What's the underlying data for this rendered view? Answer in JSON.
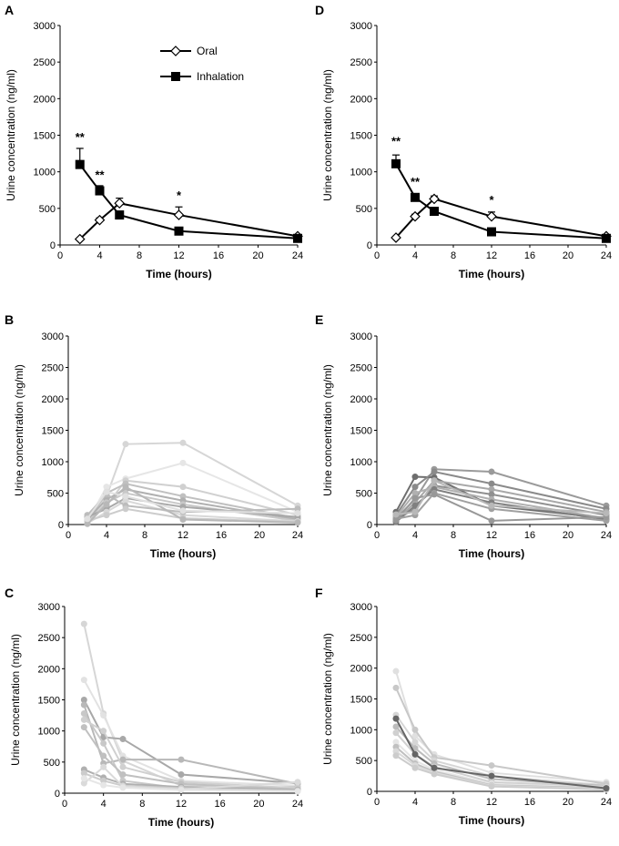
{
  "figure": {
    "panel_labels": [
      "A",
      "B",
      "C",
      "D",
      "E",
      "F"
    ]
  },
  "chart_data": [
    {
      "panel": "A",
      "type": "line",
      "xlabel": "Time (hours)",
      "ylabel": "Urine concentration (ng/ml)",
      "xlim": [
        0,
        24
      ],
      "ylim": [
        0,
        3000
      ],
      "xticks": [
        0,
        4,
        8,
        12,
        16,
        20,
        24
      ],
      "yticks": [
        0,
        500,
        1000,
        1500,
        2000,
        2500,
        3000
      ],
      "legend": [
        "Oral",
        "Inhalation"
      ],
      "series": [
        {
          "name": "Oral",
          "marker": "diamond-open",
          "x": [
            2,
            4,
            6,
            12,
            24
          ],
          "values": [
            80,
            340,
            570,
            410,
            120
          ],
          "error": [
            0,
            30,
            70,
            110,
            20
          ]
        },
        {
          "name": "Inhalation",
          "marker": "square-filled",
          "x": [
            2,
            4,
            6,
            12,
            24
          ],
          "values": [
            1100,
            740,
            410,
            190,
            90
          ],
          "error": [
            220,
            70,
            50,
            30,
            20
          ]
        }
      ],
      "annotations": [
        {
          "x": 2,
          "y": 1420,
          "text": "**"
        },
        {
          "x": 4,
          "y": 900,
          "text": "**"
        },
        {
          "x": 12,
          "y": 620,
          "text": "*"
        }
      ]
    },
    {
      "panel": "B",
      "type": "line",
      "xlabel": "Time (hours)",
      "ylabel": "Urine concentration (ng/ml)",
      "xlim": [
        0,
        24
      ],
      "ylim": [
        0,
        3000
      ],
      "xticks": [
        0,
        4,
        8,
        12,
        16,
        20,
        24
      ],
      "yticks": [
        0,
        500,
        1000,
        1500,
        2000,
        2500,
        3000
      ],
      "x": [
        2,
        4,
        6,
        12,
        24
      ],
      "series": [
        {
          "color": "#d6d6d6",
          "values": [
            60,
            450,
            1280,
            1300,
            300
          ]
        },
        {
          "color": "#e6e6e6",
          "values": [
            40,
            600,
            730,
            980,
            200
          ]
        },
        {
          "color": "#d0d0d0",
          "values": [
            100,
            300,
            700,
            600,
            150
          ]
        },
        {
          "color": "#c0c0c0",
          "values": [
            50,
            500,
            650,
            450,
            100
          ]
        },
        {
          "color": "#b0b0b0",
          "values": [
            80,
            400,
            560,
            380,
            80
          ]
        },
        {
          "color": "#c8c8c8",
          "values": [
            30,
            350,
            500,
            320,
            60
          ]
        },
        {
          "color": "#a8a8a8",
          "values": [
            120,
            250,
            420,
            280,
            120
          ]
        },
        {
          "color": "#d8d8d8",
          "values": [
            20,
            200,
            380,
            150,
            50
          ]
        },
        {
          "color": "#bcbcbc",
          "values": [
            150,
            480,
            300,
            200,
            250
          ]
        },
        {
          "color": "#cccccc",
          "values": [
            60,
            150,
            250,
            100,
            40
          ]
        },
        {
          "color": "#b8b8b8",
          "values": [
            10,
            320,
            600,
            80,
            30
          ]
        },
        {
          "color": "#e0e0e0",
          "values": [
            90,
            520,
            450,
            220,
            180
          ]
        }
      ]
    },
    {
      "panel": "C",
      "type": "line",
      "xlabel": "Time (hours)",
      "ylabel": "Urine concentration (ng/ml)",
      "xlim": [
        0,
        24
      ],
      "ylim": [
        0,
        3000
      ],
      "xticks": [
        0,
        4,
        8,
        12,
        16,
        20,
        24
      ],
      "yticks": [
        0,
        500,
        1000,
        1500,
        2000,
        2500,
        3000
      ],
      "x": [
        2,
        4,
        6,
        12,
        24
      ],
      "series": [
        {
          "color": "#d6d6d6",
          "values": [
            2720,
            1280,
            520,
            120,
            90
          ]
        },
        {
          "color": "#e2e2e2",
          "values": [
            1820,
            1250,
            600,
            200,
            120
          ]
        },
        {
          "color": "#a8a8a8",
          "values": [
            1500,
            900,
            870,
            300,
            160
          ]
        },
        {
          "color": "#b8b8b8",
          "values": [
            1420,
            480,
            540,
            540,
            150
          ]
        },
        {
          "color": "#c8c8c8",
          "values": [
            1280,
            800,
            200,
            80,
            100
          ]
        },
        {
          "color": "#d0d0d0",
          "values": [
            1180,
            1000,
            420,
            180,
            80
          ]
        },
        {
          "color": "#c0c0c0",
          "values": [
            1060,
            600,
            300,
            150,
            60
          ]
        },
        {
          "color": "#b0b0b0",
          "values": [
            380,
            250,
            150,
            100,
            50
          ]
        },
        {
          "color": "#cccccc",
          "values": [
            320,
            200,
            120,
            80,
            40
          ]
        },
        {
          "color": "#dadada",
          "values": [
            160,
            420,
            110,
            60,
            180
          ]
        },
        {
          "color": "#e6e6e6",
          "values": [
            240,
            130,
            90,
            50,
            30
          ]
        }
      ]
    },
    {
      "panel": "D",
      "type": "line",
      "xlabel": "Time (hours)",
      "ylabel": "Urine concentration (ng/ml)",
      "xlim": [
        0,
        24
      ],
      "ylim": [
        0,
        3000
      ],
      "xticks": [
        0,
        4,
        8,
        12,
        16,
        20,
        24
      ],
      "yticks": [
        0,
        500,
        1000,
        1500,
        2000,
        2500,
        3000
      ],
      "series": [
        {
          "name": "Oral",
          "marker": "diamond-open",
          "x": [
            2,
            4,
            6,
            12,
            24
          ],
          "values": [
            100,
            390,
            630,
            390,
            120
          ],
          "error": [
            0,
            30,
            40,
            60,
            20
          ]
        },
        {
          "name": "Inhalation",
          "marker": "square-filled",
          "x": [
            2,
            4,
            6,
            12,
            24
          ],
          "values": [
            1110,
            650,
            460,
            180,
            90
          ],
          "error": [
            120,
            50,
            30,
            20,
            10
          ]
        }
      ],
      "annotations": [
        {
          "x": 2,
          "y": 1360,
          "text": "**"
        },
        {
          "x": 4,
          "y": 810,
          "text": "**"
        },
        {
          "x": 12,
          "y": 560,
          "text": "*"
        }
      ]
    },
    {
      "panel": "E",
      "type": "line",
      "xlabel": "Time (hours)",
      "ylabel": "Urine concentration (ng/ml)",
      "xlim": [
        0,
        24
      ],
      "ylim": [
        0,
        3000
      ],
      "xticks": [
        0,
        4,
        8,
        12,
        16,
        20,
        24
      ],
      "yticks": [
        0,
        500,
        1000,
        1500,
        2000,
        2500,
        3000
      ],
      "x": [
        2,
        4,
        6,
        12,
        24
      ],
      "series": [
        {
          "color": "#9a9a9a",
          "values": [
            100,
            400,
            880,
            840,
            300
          ]
        },
        {
          "color": "#6e6e6e",
          "values": [
            200,
            760,
            750,
            300,
            100
          ]
        },
        {
          "color": "#8a8a8a",
          "values": [
            150,
            600,
            840,
            650,
            250
          ]
        },
        {
          "color": "#a8a8a8",
          "values": [
            60,
            350,
            700,
            560,
            200
          ]
        },
        {
          "color": "#909090",
          "values": [
            80,
            250,
            620,
            480,
            150
          ]
        },
        {
          "color": "#b0b0b0",
          "values": [
            120,
            500,
            600,
            400,
            100
          ]
        },
        {
          "color": "#808080",
          "values": [
            40,
            300,
            560,
            350,
            80
          ]
        },
        {
          "color": "#a0a0a0",
          "values": [
            90,
            150,
            500,
            250,
            60
          ]
        },
        {
          "color": "#989898",
          "values": [
            70,
            420,
            480,
            60,
            120
          ]
        },
        {
          "color": "#b8b8b8",
          "values": [
            160,
            200,
            700,
            300,
            180
          ]
        }
      ]
    },
    {
      "panel": "F",
      "type": "line",
      "xlabel": "Time (hours)",
      "ylabel": "Urine concentration (ng/ml)",
      "xlim": [
        0,
        24
      ],
      "ylim": [
        0,
        3000
      ],
      "xticks": [
        0,
        4,
        8,
        12,
        16,
        20,
        24
      ],
      "yticks": [
        0,
        500,
        1000,
        1500,
        2000,
        2500,
        3000
      ],
      "x": [
        2,
        4,
        6,
        12,
        24
      ],
      "series": [
        {
          "color": "#e0e0e0",
          "values": [
            1950,
            900,
            600,
            300,
            150
          ]
        },
        {
          "color": "#c8c8c8",
          "values": [
            1680,
            1000,
            550,
            420,
            120
          ]
        },
        {
          "color": "#d6d6d6",
          "values": [
            1240,
            800,
            500,
            250,
            100
          ]
        },
        {
          "color": "#bcbcbc",
          "values": [
            1050,
            700,
            450,
            200,
            90
          ]
        },
        {
          "color": "#d0d0d0",
          "values": [
            950,
            600,
            400,
            150,
            80
          ]
        },
        {
          "color": "#e6e6e6",
          "values": [
            800,
            500,
            350,
            120,
            60
          ]
        },
        {
          "color": "#c0c0c0",
          "values": [
            720,
            450,
            320,
            100,
            50
          ]
        },
        {
          "color": "#dadada",
          "values": [
            650,
            420,
            300,
            90,
            40
          ]
        },
        {
          "color": "#cccccc",
          "values": [
            580,
            380,
            280,
            80,
            30
          ]
        },
        {
          "color": "#666666",
          "values": [
            1180,
            600,
            380,
            250,
            50
          ]
        }
      ]
    }
  ]
}
